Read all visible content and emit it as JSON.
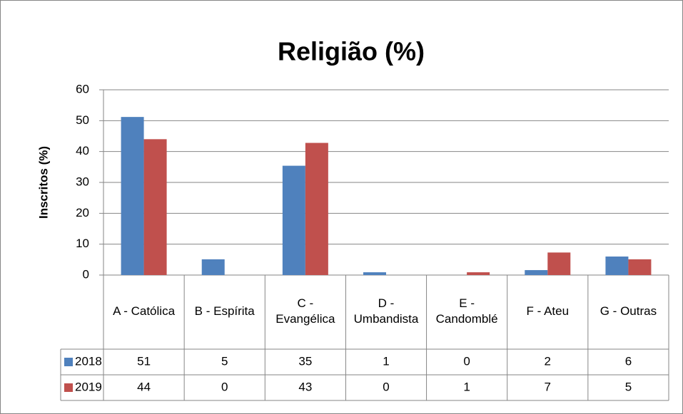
{
  "chart_data": {
    "type": "bar",
    "title": "Religião (%)",
    "y_label": "Inscritos (%)",
    "categories": [
      "A - Católica",
      "B - Espírita",
      "C - Evangélica",
      "D - Umbandista",
      "E - Candomblé",
      "F - Ateu",
      "G - Outras"
    ],
    "series": [
      {
        "name": "2018",
        "color": "#4f81bd",
        "values": [
          51.2,
          5.1,
          35.4,
          0.9,
          0,
          1.6,
          6.0
        ],
        "value_labels": [
          "51",
          "5",
          "35",
          "1",
          "0",
          "2",
          "6"
        ]
      },
      {
        "name": "2019",
        "color": "#c0504d",
        "values": [
          44.0,
          0,
          42.8,
          0,
          0.9,
          7.3,
          5.1
        ],
        "value_labels": [
          "44",
          "0",
          "43",
          "0",
          "1",
          "7",
          "5"
        ]
      }
    ],
    "ylim": [
      0,
      60
    ],
    "yticks": [
      0,
      10,
      20,
      30,
      40,
      50,
      60
    ],
    "grid": true
  }
}
